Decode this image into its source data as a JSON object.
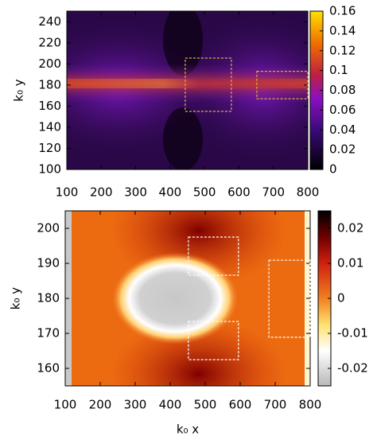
{
  "chart_data": [
    {
      "type": "heatmap",
      "ylabel": "k₀ y",
      "xlim": [
        100,
        800
      ],
      "xticks": [
        100,
        200,
        300,
        400,
        500,
        600,
        700,
        800
      ],
      "ylim": [
        100,
        250
      ],
      "yticks": [
        100,
        120,
        140,
        160,
        180,
        200,
        220,
        240
      ],
      "colorbar": {
        "lim": [
          0,
          0.16
        ],
        "ticks": [
          0,
          0.02,
          0.04,
          0.06,
          0.08,
          0.1,
          0.12,
          0.14,
          0.16
        ]
      },
      "regions": [
        {
          "x": [
            444,
            578
          ],
          "y": [
            155,
            205.5
          ]
        },
        {
          "x": [
            652,
            800
          ],
          "y": [
            167,
            193
          ]
        }
      ]
    },
    {
      "type": "heatmap",
      "xlabel": "k₀ x",
      "ylabel": "k₀ y",
      "xlim": [
        100,
        800
      ],
      "xticks": [
        100,
        200,
        300,
        400,
        500,
        600,
        700,
        800
      ],
      "ylim": [
        155,
        205
      ],
      "yticks": [
        160,
        170,
        180,
        190,
        200
      ],
      "colorbar": {
        "lim": [
          -0.025,
          0.025
        ],
        "ticks": [
          -0.02,
          -0.01,
          0,
          0.01,
          0.02
        ]
      },
      "regions": [
        {
          "x": [
            452,
            595
          ],
          "y": [
            186.6,
            197.5
          ]
        },
        {
          "x": [
            452,
            595
          ],
          "y": [
            162.5,
            173.4
          ]
        },
        {
          "x": [
            682,
            800
          ],
          "y": [
            168.9,
            190.9
          ]
        }
      ]
    }
  ]
}
